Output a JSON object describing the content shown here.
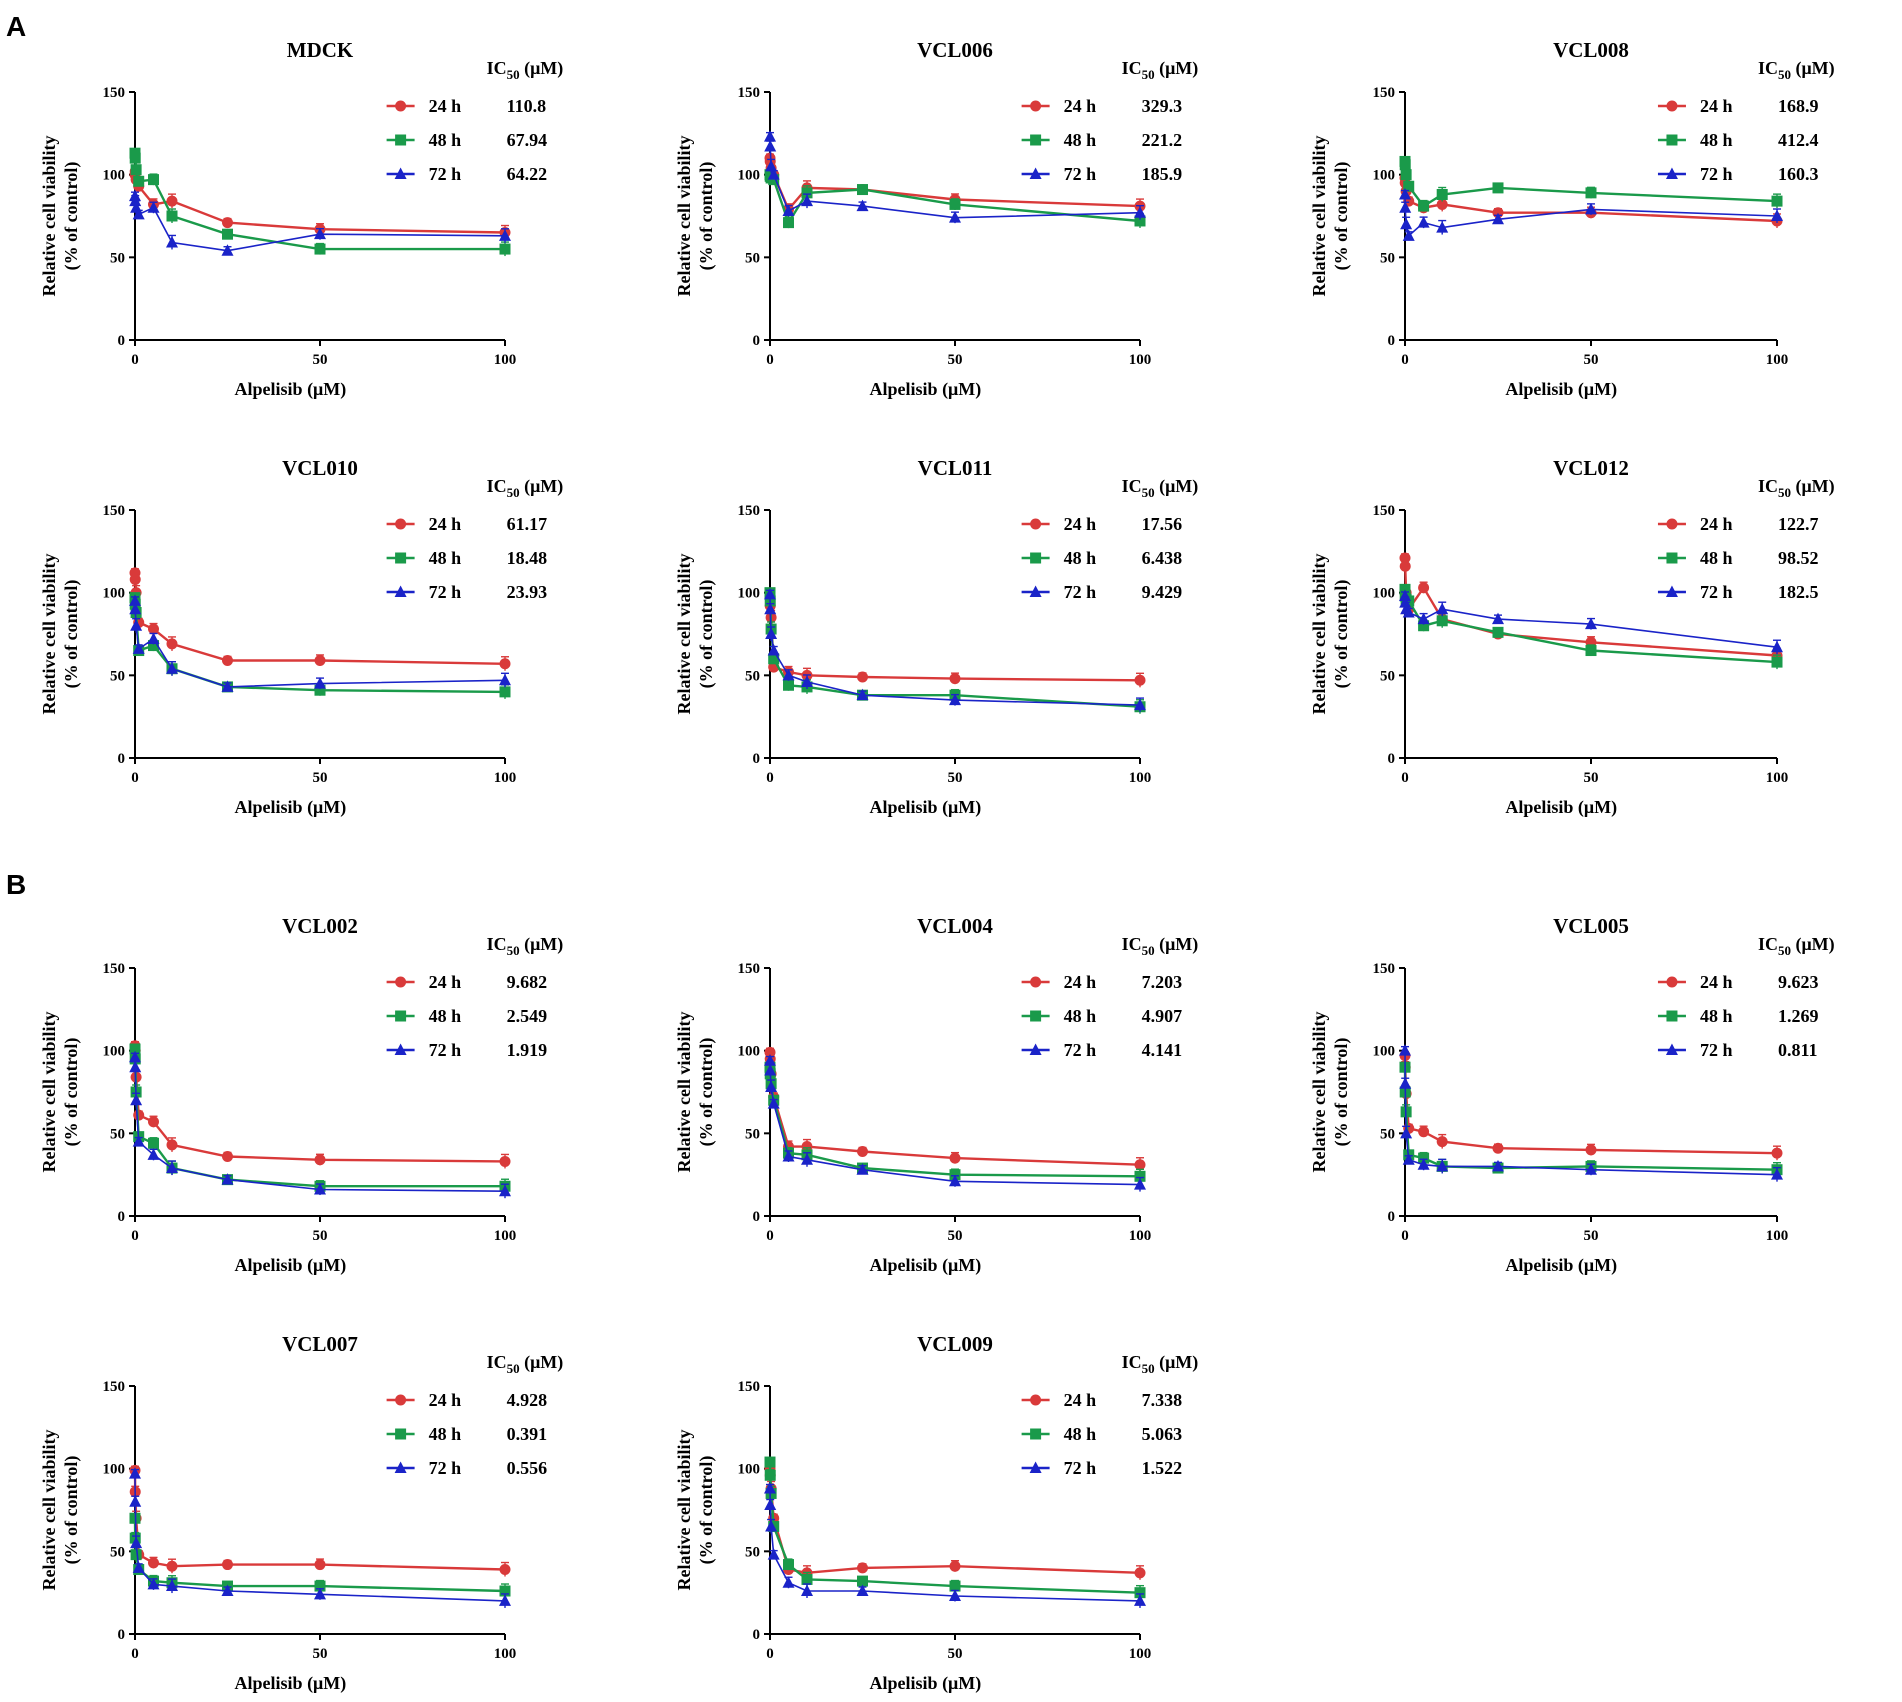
{
  "panel_labels": [
    "A",
    "B"
  ],
  "common": {
    "xlabel": "Alpelisib (μM)",
    "ylabel_line1": "Relative cell viability",
    "ylabel_line2": "(% of control)",
    "ic50_header": "IC50 (μM)",
    "ic50_header_main": "IC",
    "ic50_header_sub": "50",
    "ic50_header_unit": " (μM)",
    "x_ticks": [
      "0",
      "50",
      "100"
    ],
    "y_ticks": [
      "0",
      "50",
      "100",
      "150"
    ],
    "series_colors": {
      "24 h": "#d93a3a",
      "48 h": "#1a9a4a",
      "72 h": "#1a23c8"
    },
    "series_markers": {
      "24 h": "circle",
      "48 h": "square",
      "72 h": "triangle"
    }
  },
  "chart_data": [
    {
      "type": "line",
      "panel": "A",
      "title": "MDCK",
      "xlabel": "Alpelisib (μM)",
      "ylabel": "Relative cell viability (% of control)",
      "xlim": [
        0,
        100
      ],
      "ylim": [
        0,
        150
      ],
      "x": [
        0,
        0.1,
        0.5,
        1,
        5,
        10,
        25,
        50,
        100
      ],
      "series": [
        {
          "name": "24 h",
          "ic50": "110.8",
          "values": [
            100,
            102,
            97,
            93,
            82,
            84,
            71,
            67,
            65
          ]
        },
        {
          "name": "48 h",
          "ic50": "67.94",
          "values": [
            113,
            110,
            103,
            96,
            97,
            75,
            64,
            55,
            55
          ]
        },
        {
          "name": "72 h",
          "ic50": "64.22",
          "values": [
            87,
            84,
            80,
            76,
            80,
            59,
            54,
            64,
            63
          ]
        }
      ]
    },
    {
      "type": "line",
      "panel": "A",
      "title": "VCL006",
      "xlabel": "Alpelisib (μM)",
      "ylabel": "Relative cell viability (% of control)",
      "xlim": [
        0,
        100
      ],
      "ylim": [
        0,
        150
      ],
      "x": [
        0,
        0.1,
        0.5,
        1,
        5,
        10,
        25,
        50,
        100
      ],
      "series": [
        {
          "name": "24 h",
          "ic50": "329.3",
          "values": [
            110,
            108,
            104,
            100,
            79,
            92,
            91,
            85,
            81
          ]
        },
        {
          "name": "48 h",
          "ic50": "221.2",
          "values": [
            100,
            99,
            98,
            97,
            71,
            89,
            91,
            82,
            72
          ]
        },
        {
          "name": "72 h",
          "ic50": "185.9",
          "values": [
            123,
            117,
            105,
            100,
            78,
            84,
            81,
            74,
            77
          ]
        }
      ]
    },
    {
      "type": "line",
      "panel": "A",
      "title": "VCL008",
      "xlabel": "Alpelisib (μM)",
      "ylabel": "Relative cell viability (% of control)",
      "xlim": [
        0,
        100
      ],
      "ylim": [
        0,
        150
      ],
      "x": [
        0,
        0.1,
        0.5,
        1,
        5,
        10,
        25,
        50,
        100
      ],
      "series": [
        {
          "name": "24 h",
          "ic50": "168.9",
          "values": [
            98,
            95,
            90,
            84,
            80,
            82,
            77,
            77,
            72
          ]
        },
        {
          "name": "48 h",
          "ic50": "412.4",
          "values": [
            108,
            106,
            100,
            93,
            81,
            88,
            92,
            89,
            84
          ]
        },
        {
          "name": "72 h",
          "ic50": "160.3",
          "values": [
            88,
            80,
            70,
            63,
            71,
            68,
            73,
            79,
            75
          ]
        }
      ]
    },
    {
      "type": "line",
      "panel": "A",
      "title": "VCL010",
      "xlabel": "Alpelisib (μM)",
      "ylabel": "Relative cell viability (% of control)",
      "xlim": [
        0,
        100
      ],
      "ylim": [
        0,
        150
      ],
      "x": [
        0,
        0.1,
        0.5,
        1,
        5,
        10,
        25,
        50,
        100
      ],
      "series": [
        {
          "name": "24 h",
          "ic50": "61.17",
          "values": [
            112,
            108,
            100,
            82,
            78,
            69,
            59,
            59,
            57
          ]
        },
        {
          "name": "48 h",
          "ic50": "18.48",
          "values": [
            97,
            93,
            88,
            65,
            68,
            54,
            43,
            41,
            40
          ]
        },
        {
          "name": "72 h",
          "ic50": "23.93",
          "values": [
            95,
            90,
            80,
            66,
            72,
            54,
            43,
            45,
            47
          ]
        }
      ]
    },
    {
      "type": "line",
      "panel": "A",
      "title": "VCL011",
      "xlabel": "Alpelisib (μM)",
      "ylabel": "Relative cell viability (% of control)",
      "xlim": [
        0,
        100
      ],
      "ylim": [
        0,
        150
      ],
      "x": [
        0,
        0.1,
        0.5,
        1,
        5,
        10,
        25,
        50,
        100
      ],
      "series": [
        {
          "name": "24 h",
          "ic50": "17.56",
          "values": [
            98,
            92,
            85,
            55,
            52,
            50,
            49,
            48,
            47
          ]
        },
        {
          "name": "48 h",
          "ic50": "6.438",
          "values": [
            100,
            95,
            78,
            60,
            44,
            43,
            38,
            38,
            31
          ]
        },
        {
          "name": "72 h",
          "ic50": "9.429",
          "values": [
            99,
            90,
            75,
            65,
            50,
            46,
            38,
            35,
            32
          ]
        }
      ]
    },
    {
      "type": "line",
      "panel": "A",
      "title": "VCL012",
      "xlabel": "Alpelisib (μM)",
      "ylabel": "Relative cell viability (% of control)",
      "xlim": [
        0,
        100
      ],
      "ylim": [
        0,
        150
      ],
      "x": [
        0,
        0.1,
        0.5,
        1,
        5,
        10,
        25,
        50,
        100
      ],
      "series": [
        {
          "name": "24 h",
          "ic50": "122.7",
          "values": [
            121,
            116,
            100,
            90,
            103,
            84,
            75,
            70,
            62
          ]
        },
        {
          "name": "48 h",
          "ic50": "98.52",
          "values": [
            102,
            98,
            96,
            95,
            80,
            83,
            76,
            65,
            58
          ]
        },
        {
          "name": "72 h",
          "ic50": "182.5",
          "values": [
            98,
            94,
            90,
            88,
            84,
            90,
            84,
            81,
            67
          ]
        }
      ]
    },
    {
      "type": "line",
      "panel": "B",
      "title": "VCL002",
      "xlabel": "Alpelisib (μM)",
      "ylabel": "Relative cell viability (% of control)",
      "xlim": [
        0,
        100
      ],
      "ylim": [
        0,
        150
      ],
      "x": [
        0,
        0.1,
        0.5,
        1,
        5,
        10,
        25,
        50,
        100
      ],
      "series": [
        {
          "name": "24 h",
          "ic50": "9.682",
          "values": [
            103,
            100,
            84,
            61,
            57,
            43,
            36,
            34,
            33
          ]
        },
        {
          "name": "48 h",
          "ic50": "2.549",
          "values": [
            101,
            95,
            75,
            48,
            44,
            29,
            22,
            18,
            18
          ]
        },
        {
          "name": "72 h",
          "ic50": "1.919",
          "values": [
            96,
            90,
            70,
            45,
            37,
            29,
            22,
            16,
            15
          ]
        }
      ]
    },
    {
      "type": "line",
      "panel": "B",
      "title": "VCL004",
      "xlabel": "Alpelisib (μM)",
      "ylabel": "Relative cell viability (% of control)",
      "xlim": [
        0,
        100
      ],
      "ylim": [
        0,
        150
      ],
      "x": [
        0,
        0.1,
        0.5,
        1,
        5,
        10,
        25,
        50,
        100
      ],
      "series": [
        {
          "name": "24 h",
          "ic50": "7.203",
          "values": [
            99,
            95,
            86,
            72,
            42,
            42,
            39,
            35,
            31
          ]
        },
        {
          "name": "48 h",
          "ic50": "4.907",
          "values": [
            90,
            86,
            80,
            70,
            38,
            37,
            29,
            25,
            24
          ]
        },
        {
          "name": "72 h",
          "ic50": "4.141",
          "values": [
            94,
            88,
            78,
            68,
            36,
            34,
            28,
            21,
            19
          ]
        }
      ]
    },
    {
      "type": "line",
      "panel": "B",
      "title": "VCL005",
      "xlabel": "Alpelisib (μM)",
      "ylabel": "Relative cell viability (% of control)",
      "xlim": [
        0,
        100
      ],
      "ylim": [
        0,
        150
      ],
      "x": [
        0,
        0.1,
        0.5,
        1,
        5,
        10,
        25,
        50,
        100
      ],
      "series": [
        {
          "name": "24 h",
          "ic50": "9.623",
          "values": [
            97,
            90,
            74,
            53,
            51,
            45,
            41,
            40,
            38
          ]
        },
        {
          "name": "48 h",
          "ic50": "1.269",
          "values": [
            90,
            75,
            63,
            37,
            35,
            30,
            29,
            30,
            28
          ]
        },
        {
          "name": "72 h",
          "ic50": "0.811",
          "values": [
            100,
            80,
            50,
            34,
            31,
            30,
            30,
            28,
            25
          ]
        }
      ]
    },
    {
      "type": "line",
      "panel": "B",
      "title": "VCL007",
      "xlabel": "Alpelisib (μM)",
      "ylabel": "Relative cell viability (% of control)",
      "xlim": [
        0,
        100
      ],
      "ylim": [
        0,
        150
      ],
      "x": [
        0,
        0.1,
        0.5,
        1,
        5,
        10,
        25,
        50,
        100
      ],
      "series": [
        {
          "name": "24 h",
          "ic50": "4.928",
          "values": [
            99,
            86,
            70,
            48,
            43,
            41,
            42,
            42,
            39
          ]
        },
        {
          "name": "48 h",
          "ic50": "0.391",
          "values": [
            70,
            58,
            48,
            39,
            32,
            31,
            29,
            29,
            26
          ]
        },
        {
          "name": "72 h",
          "ic50": "0.556",
          "values": [
            97,
            80,
            55,
            40,
            30,
            29,
            26,
            24,
            20
          ]
        }
      ]
    },
    {
      "type": "line",
      "panel": "B",
      "title": "VCL009",
      "xlabel": "Alpelisib (μM)",
      "ylabel": "Relative cell viability (% of control)",
      "xlim": [
        0,
        100
      ],
      "ylim": [
        0,
        150
      ],
      "x": [
        0,
        0.1,
        0.5,
        1,
        5,
        10,
        25,
        50,
        100
      ],
      "series": [
        {
          "name": "24 h",
          "ic50": "7.338",
          "values": [
            100,
            96,
            88,
            70,
            39,
            37,
            40,
            41,
            37
          ]
        },
        {
          "name": "48 h",
          "ic50": "5.063",
          "values": [
            104,
            96,
            85,
            65,
            42,
            33,
            32,
            29,
            25
          ]
        },
        {
          "name": "72 h",
          "ic50": "1.522",
          "values": [
            88,
            78,
            65,
            48,
            31,
            26,
            26,
            23,
            20
          ]
        }
      ]
    }
  ]
}
